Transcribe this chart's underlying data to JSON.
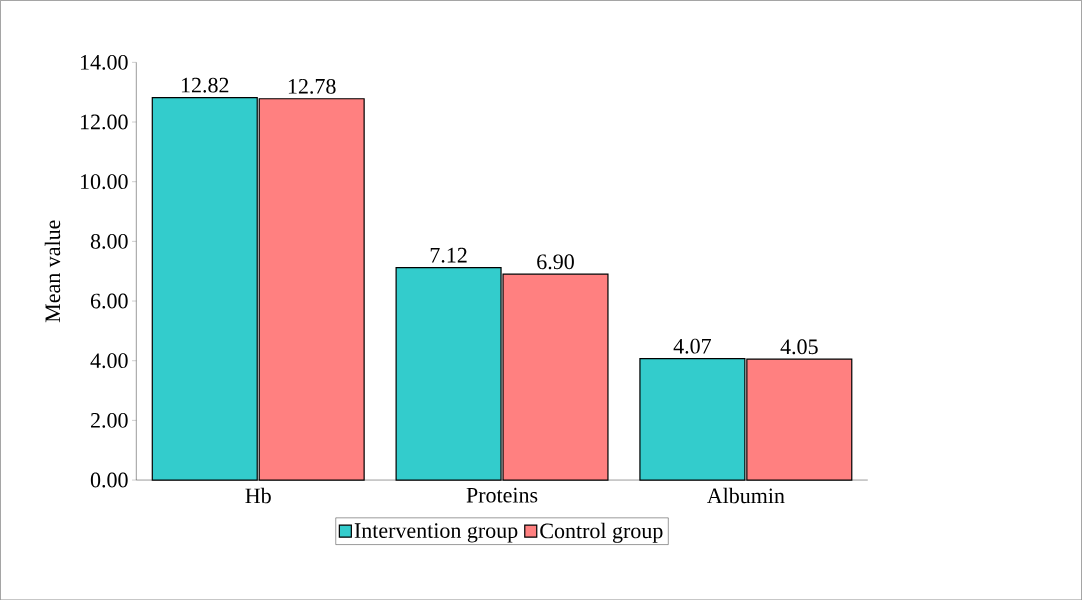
{
  "chart_data": {
    "type": "bar",
    "ylabel": "Mean value",
    "categories": [
      "Hb",
      "Proteins",
      "Albumin"
    ],
    "series": [
      {
        "name": "Intervention group",
        "color": "#33cccc",
        "values": [
          12.82,
          7.12,
          4.07
        ],
        "value_labels": [
          "12.82",
          "7.12",
          "4.07"
        ]
      },
      {
        "name": "Control group",
        "color": "#ff8080",
        "values": [
          12.78,
          6.9,
          4.05
        ],
        "value_labels": [
          "12.78",
          "6.90",
          "4.05"
        ]
      }
    ],
    "ylim": [
      0,
      14
    ],
    "yticks": [
      {
        "value": 0,
        "label": "0.00"
      },
      {
        "value": 2,
        "label": "2.00"
      },
      {
        "value": 4,
        "label": "4.00"
      },
      {
        "value": 6,
        "label": "6.00"
      },
      {
        "value": 8,
        "label": "8.00"
      },
      {
        "value": 10,
        "label": "10.00"
      },
      {
        "value": 12,
        "label": "12.00"
      },
      {
        "value": 14,
        "label": "14.00"
      }
    ],
    "legend": "bottom",
    "grid": false
  }
}
